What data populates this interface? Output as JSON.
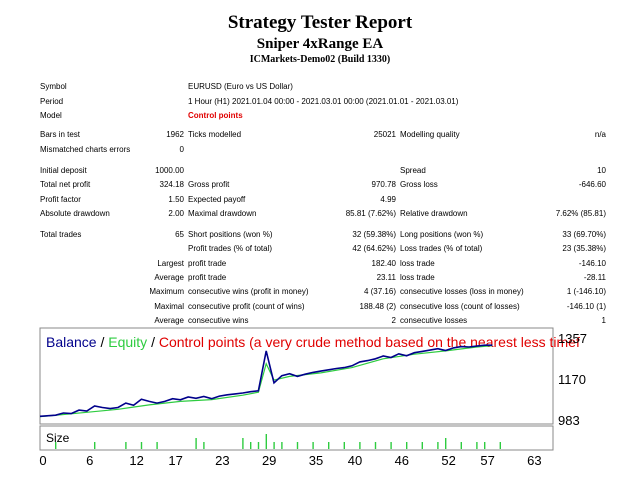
{
  "report": {
    "title": "Strategy Tester Report",
    "ea_name": "Sniper 4xRange EA",
    "account": "ICMarkets-Demo02 (Build 1330)"
  },
  "summary": {
    "symbol_label": "Symbol",
    "symbol_value": "EURUSD (Euro vs US Dollar)",
    "period_label": "Period",
    "period_value": "1 Hour (H1) 2021.01.04 00:00 - 2021.03.01 00:00 (2021.01.01 - 2021.03.01)",
    "model_label": "Model",
    "model_value": "Control points",
    "bars_label": "Bars in test",
    "bars_value": "1962",
    "ticks_label": "Ticks modelled",
    "ticks_value": "25021",
    "quality_label": "Modelling quality",
    "quality_value": "n/a",
    "mismatch_label": "Mismatched charts errors",
    "mismatch_value": "0",
    "deposit_label": "Initial deposit",
    "deposit_value": "1000.00",
    "spread_label": "Spread",
    "spread_value": "10",
    "netprofit_label": "Total net profit",
    "netprofit_value": "324.18",
    "grossprofit_label": "Gross profit",
    "grossprofit_value": "970.78",
    "grossloss_label": "Gross loss",
    "grossloss_value": "-646.60",
    "pf_label": "Profit factor",
    "pf_value": "1.50",
    "payoff_label": "Expected payoff",
    "payoff_value": "4.99",
    "absdd_label": "Absolute drawdown",
    "absdd_value": "2.00",
    "maxdd_label": "Maximal drawdown",
    "maxdd_value": "85.81 (7.62%)",
    "reldd_label": "Relative drawdown",
    "reldd_value": "7.62% (85.81)",
    "trades_label": "Total trades",
    "trades_value": "65",
    "short_label": "Short positions (won %)",
    "short_value": "32 (59.38%)",
    "long_label": "Long positions (won %)",
    "long_value": "33 (69.70%)",
    "profit_trades_label": "Profit trades (% of total)",
    "profit_trades_value": "42 (64.62%)",
    "loss_trades_label": "Loss trades (% of total)",
    "loss_trades_value": "23 (35.38%)",
    "largest_label": "Largest",
    "largest_profit_label": "profit trade",
    "largest_profit_value": "182.40",
    "largest_loss_label": "loss trade",
    "largest_loss_value": "-146.10",
    "average_label": "Average",
    "average_profit_label": "profit trade",
    "average_profit_value": "23.11",
    "average_loss_label": "loss trade",
    "average_loss_value": "-28.11",
    "maximum_label": "Maximum",
    "max_wins_label": "consecutive wins (profit in money)",
    "max_wins_value": "4 (37.16)",
    "max_losses_label": "consecutive losses (loss in money)",
    "max_losses_value": "1 (-146.10)",
    "maximal_label": "Maximal",
    "maximal_profit_label": "consecutive profit (count of wins)",
    "maximal_profit_value": "188.48 (2)",
    "maximal_loss_label": "consecutive loss (count of losses)",
    "maximal_loss_value": "-146.10 (1)",
    "avg2_label": "Average",
    "avg_wins_label": "consecutive wins",
    "avg_wins_value": "2",
    "avg_losses_label": "consecutive losses",
    "avg_losses_value": "1"
  },
  "chart_data": {
    "type": "line",
    "legend": [
      {
        "text": "Balance",
        "color": "#00008b"
      },
      {
        "text": " / ",
        "color": "#000000"
      },
      {
        "text": "Equity",
        "color": "#2ecc40"
      },
      {
        "text": " / ",
        "color": "#000000"
      },
      {
        "text": "Control points (a very crude method based on the nearest less timef",
        "color": "#e00000"
      }
    ],
    "ylim": [
      983,
      1357
    ],
    "y_ticks": [
      "1357",
      "1170",
      "983"
    ],
    "x_ticks": [
      0,
      6,
      12,
      17,
      23,
      29,
      35,
      40,
      46,
      52,
      57,
      63
    ],
    "xlim": [
      0,
      65
    ],
    "balance": [
      [
        0,
        1000
      ],
      [
        2,
        1005
      ],
      [
        3,
        1015
      ],
      [
        4,
        1012
      ],
      [
        5,
        1028
      ],
      [
        6,
        1024
      ],
      [
        7,
        1047
      ],
      [
        8,
        1040
      ],
      [
        9,
        1035
      ],
      [
        10,
        1040
      ],
      [
        11,
        1060
      ],
      [
        12,
        1050
      ],
      [
        13,
        1078
      ],
      [
        14,
        1068
      ],
      [
        15,
        1060
      ],
      [
        16,
        1068
      ],
      [
        17,
        1080
      ],
      [
        18,
        1075
      ],
      [
        19,
        1088
      ],
      [
        20,
        1082
      ],
      [
        21,
        1090
      ],
      [
        22,
        1080
      ],
      [
        23,
        1092
      ],
      [
        24,
        1098
      ],
      [
        25,
        1102
      ],
      [
        26,
        1106
      ],
      [
        27,
        1112
      ],
      [
        28,
        1116
      ],
      [
        29,
        1298
      ],
      [
        30,
        1152
      ],
      [
        31,
        1185
      ],
      [
        32,
        1194
      ],
      [
        33,
        1182
      ],
      [
        34,
        1192
      ],
      [
        35,
        1200
      ],
      [
        36,
        1206
      ],
      [
        37,
        1212
      ],
      [
        38,
        1218
      ],
      [
        39,
        1222
      ],
      [
        40,
        1230
      ],
      [
        41,
        1248
      ],
      [
        42,
        1254
      ],
      [
        43,
        1262
      ],
      [
        44,
        1275
      ],
      [
        45,
        1268
      ],
      [
        46,
        1285
      ],
      [
        47,
        1276
      ],
      [
        48,
        1290
      ],
      [
        49,
        1296
      ],
      [
        50,
        1302
      ],
      [
        51,
        1308
      ],
      [
        52,
        1300
      ],
      [
        53,
        1312
      ],
      [
        54,
        1318
      ],
      [
        55,
        1316
      ],
      [
        56,
        1320
      ],
      [
        57,
        1324
      ],
      [
        58,
        1324
      ]
    ],
    "equity": [
      [
        0,
        998
      ],
      [
        3,
        1008
      ],
      [
        6,
        1018
      ],
      [
        10,
        1032
      ],
      [
        14,
        1052
      ],
      [
        18,
        1068
      ],
      [
        22,
        1076
      ],
      [
        26,
        1096
      ],
      [
        28,
        1110
      ],
      [
        29,
        1240
      ],
      [
        30,
        1165
      ],
      [
        32,
        1182
      ],
      [
        36,
        1198
      ],
      [
        40,
        1222
      ],
      [
        44,
        1262
      ],
      [
        48,
        1283
      ],
      [
        52,
        1298
      ],
      [
        56,
        1316
      ],
      [
        58,
        1322
      ]
    ],
    "size_panel": {
      "label": "Size",
      "bars": [
        [
          2,
          1
        ],
        [
          7,
          1
        ],
        [
          11,
          1
        ],
        [
          13,
          1
        ],
        [
          15,
          1
        ],
        [
          20,
          2
        ],
        [
          21,
          1
        ],
        [
          26,
          2
        ],
        [
          27,
          1
        ],
        [
          28,
          1
        ],
        [
          29,
          3
        ],
        [
          30,
          1
        ],
        [
          31,
          1
        ],
        [
          33,
          1
        ],
        [
          35,
          1
        ],
        [
          37,
          1
        ],
        [
          39,
          1
        ],
        [
          41,
          1
        ],
        [
          43,
          1
        ],
        [
          45,
          1
        ],
        [
          47,
          1
        ],
        [
          49,
          1
        ],
        [
          51,
          1
        ],
        [
          52,
          2
        ],
        [
          54,
          1
        ],
        [
          56,
          1
        ],
        [
          57,
          1
        ],
        [
          59,
          1
        ]
      ]
    },
    "colors": {
      "balance": "#00008b",
      "equity": "#2ecc40",
      "size": "#2ecc40"
    }
  }
}
